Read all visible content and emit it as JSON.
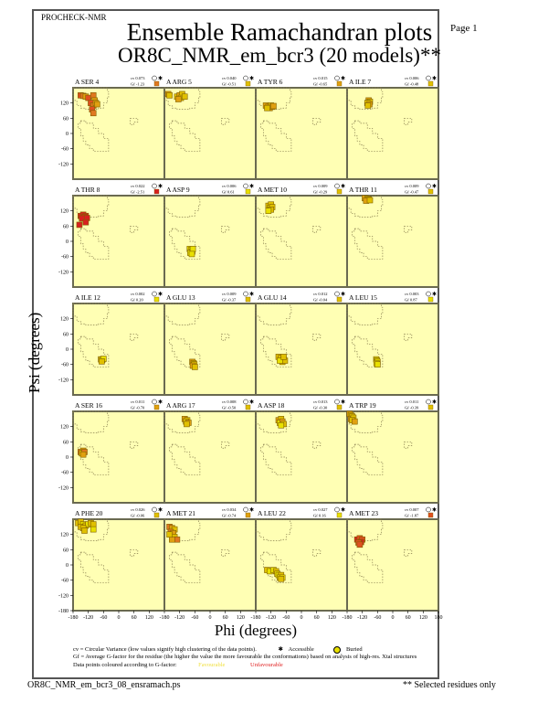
{
  "header": {
    "program": "PROCHECK-NMR",
    "title": "Ensemble Ramachandran plots",
    "subtitle": "OR8C_NMR_em_bcr3 (20 models)**",
    "page_label": "Page  1"
  },
  "footer": {
    "filename": "OR8C_NMR_em_bcr3_08_ensramach.ps",
    "note": "** Selected residues only"
  },
  "legend": {
    "cv_text": "cv = Circular Variance (low values signify high clustering of the data points).",
    "accessible_label": "Accessible",
    "buried_label": "Buried",
    "gf_text": "Gf = Average G-factor for the residue (the higher the value the more favourable the conformations) based on analysis of high-res. Xtal structures",
    "coloured_text": "Data points coloured according to G-factor:",
    "favourable_label": "Favourable",
    "unfavourable_label": "Unfavourable"
  },
  "colors": {
    "panel_bg": "#ffffb4",
    "favourable": "#e8e000",
    "unfavourable": "#e02020",
    "frame": "#555555"
  },
  "chart_data": {
    "type": "scatter",
    "title": "Ensemble Ramachandran plots",
    "xlabel": "Phi (degrees)",
    "ylabel": "Psi (degrees)",
    "xlim": [
      -180,
      180
    ],
    "ylim": [
      -180,
      180
    ],
    "x_ticks": [
      "-180",
      "-120",
      "-60",
      "0",
      "60",
      "120",
      "180"
    ],
    "y_ticks": [
      "120",
      "60",
      "0",
      "-60",
      "-120",
      "-180"
    ],
    "grid": false,
    "panels": [
      {
        "residue": "A SER 4",
        "cv": "cv 0.073",
        "gf": "Gf -1.23",
        "gf_value": -1.23,
        "points": [
          [
            -150,
            150
          ],
          [
            -140,
            148
          ],
          [
            -130,
            145
          ],
          [
            -120,
            140
          ],
          [
            -100,
            150
          ],
          [
            -95,
            130
          ],
          [
            -110,
            120
          ],
          [
            -100,
            110
          ],
          [
            -90,
            120
          ],
          [
            -105,
            95
          ],
          [
            -100,
            80
          ],
          [
            -85,
            115
          ]
        ]
      },
      {
        "residue": "A ARG 5",
        "cv": "cv 0.040",
        "gf": "Gf -0.51",
        "gf_value": -0.51,
        "points": [
          [
            -165,
            155
          ],
          [
            -160,
            150
          ],
          [
            -130,
            145
          ],
          [
            -120,
            150
          ],
          [
            -110,
            155
          ],
          [
            -115,
            140
          ],
          [
            -125,
            135
          ],
          [
            -100,
            145
          ]
        ]
      },
      {
        "residue": "A TYR 6",
        "cv": "cv 0.015",
        "gf": "Gf -0.65",
        "gf_value": -0.65,
        "points": [
          [
            -140,
            110
          ],
          [
            -130,
            105
          ],
          [
            -120,
            110
          ],
          [
            -125,
            100
          ],
          [
            -115,
            105
          ],
          [
            -135,
            100
          ],
          [
            -110,
            108
          ]
        ]
      },
      {
        "residue": "A ILE 7",
        "cv": "cv 0.006",
        "gf": "Gf -0.48",
        "gf_value": -0.48,
        "points": [
          [
            -95,
            130
          ],
          [
            -90,
            125
          ],
          [
            -100,
            120
          ],
          [
            -92,
            115
          ],
          [
            -98,
            110
          ]
        ]
      },
      {
        "residue": "A THR 8",
        "cv": "cv 0.022",
        "gf": "Gf -2.51",
        "gf_value": -2.51,
        "points": [
          [
            -150,
            100
          ],
          [
            -140,
            105
          ],
          [
            -130,
            100
          ],
          [
            -135,
            95
          ],
          [
            -145,
            90
          ],
          [
            -125,
            92
          ],
          [
            -130,
            75
          ],
          [
            -155,
            65
          ]
        ]
      },
      {
        "residue": "A ASP 9",
        "cv": "cv 0.006",
        "gf": "Gf 0.61",
        "gf_value": 0.61,
        "points": [
          [
            -80,
            -30
          ],
          [
            -75,
            -35
          ],
          [
            -70,
            -40
          ],
          [
            -78,
            -45
          ],
          [
            -68,
            -30
          ],
          [
            -72,
            -50
          ]
        ]
      },
      {
        "residue": "A MET 10",
        "cv": "cv 0.009",
        "gf": "Gf -0.29",
        "gf_value": -0.29,
        "points": [
          [
            -130,
            140
          ],
          [
            -120,
            145
          ],
          [
            -125,
            130
          ],
          [
            -115,
            135
          ],
          [
            -120,
            125
          ],
          [
            -130,
            120
          ]
        ]
      },
      {
        "residue": "A THR 11",
        "cv": "cv 0.009",
        "gf": "Gf -0.47",
        "gf_value": -0.47,
        "points": [
          [
            -110,
            170
          ],
          [
            -100,
            168
          ],
          [
            -95,
            165
          ],
          [
            -105,
            160
          ],
          [
            -90,
            162
          ]
        ]
      },
      {
        "residue": "A ILE 12",
        "cv": "cv 0.002",
        "gf": "Gf 0.20",
        "gf_value": 0.2,
        "points": [
          [
            -70,
            -40
          ],
          [
            -65,
            -42
          ],
          [
            -60,
            -38
          ],
          [
            -67,
            -48
          ]
        ]
      },
      {
        "residue": "A GLU 13",
        "cv": "cv 0.009",
        "gf": "Gf -0.37",
        "gf_value": -0.37,
        "points": [
          [
            -70,
            -50
          ],
          [
            -65,
            -55
          ],
          [
            -62,
            -60
          ],
          [
            -68,
            -65
          ],
          [
            -60,
            -70
          ]
        ]
      },
      {
        "residue": "A GLU 14",
        "cv": "cv 0.012",
        "gf": "Gf -0.04",
        "gf_value": -0.04,
        "points": [
          [
            -90,
            -30
          ],
          [
            -80,
            -35
          ],
          [
            -70,
            -40
          ],
          [
            -75,
            -50
          ],
          [
            -65,
            -45
          ],
          [
            -85,
            -45
          ],
          [
            -70,
            -30
          ]
        ]
      },
      {
        "residue": "A LEU 15",
        "cv": "cv 0.003",
        "gf": "Gf 0.87",
        "gf_value": 0.87,
        "points": [
          [
            -65,
            -40
          ],
          [
            -62,
            -45
          ],
          [
            -60,
            -50
          ],
          [
            -64,
            -55
          ],
          [
            -60,
            -60
          ]
        ]
      },
      {
        "residue": "A SER 16",
        "cv": "cv 0.011",
        "gf": "Gf -0.70",
        "gf_value": -0.7,
        "points": [
          [
            -150,
            20
          ],
          [
            -140,
            25
          ],
          [
            -145,
            15
          ],
          [
            -135,
            20
          ],
          [
            -140,
            10
          ]
        ]
      },
      {
        "residue": "A ARG 17",
        "cv": "cv 0.008",
        "gf": "Gf -0.50",
        "gf_value": -0.5,
        "points": [
          [
            -100,
            150
          ],
          [
            -90,
            145
          ],
          [
            -95,
            140
          ],
          [
            -85,
            135
          ],
          [
            -92,
            130
          ]
        ]
      },
      {
        "residue": "A ASP 18",
        "cv": "cv 0.013",
        "gf": "Gf -0.30",
        "gf_value": -0.3,
        "points": [
          [
            -90,
            145
          ],
          [
            -80,
            150
          ],
          [
            -85,
            135
          ],
          [
            -75,
            140
          ],
          [
            -70,
            130
          ],
          [
            -80,
            125
          ]
        ]
      },
      {
        "residue": "A TRP 19",
        "cv": "cv 0.011",
        "gf": "Gf -0.39",
        "gf_value": -0.39,
        "points": [
          [
            -170,
            170
          ],
          [
            -165,
            165
          ],
          [
            -160,
            160
          ],
          [
            -165,
            150
          ],
          [
            -155,
            155
          ],
          [
            -160,
            145
          ],
          [
            -150,
            140
          ]
        ]
      },
      {
        "residue": "A PHE 20",
        "cv": "cv 0.026",
        "gf": "Gf -0.06",
        "gf_value": -0.06,
        "points": [
          [
            -160,
            165
          ],
          [
            -150,
            170
          ],
          [
            -140,
            160
          ],
          [
            -150,
            150
          ],
          [
            -130,
            155
          ],
          [
            -120,
            160
          ],
          [
            -110,
            165
          ],
          [
            -100,
            160
          ],
          [
            -100,
            140
          ],
          [
            -140,
            145
          ],
          [
            -135,
            135
          ]
        ]
      },
      {
        "residue": "A MET 21",
        "cv": "cv 0.034",
        "gf": "Gf -0.74",
        "gf_value": -0.74,
        "points": [
          [
            -160,
            150
          ],
          [
            -150,
            145
          ],
          [
            -140,
            140
          ],
          [
            -155,
            130
          ],
          [
            -145,
            125
          ],
          [
            -140,
            110
          ],
          [
            -130,
            100
          ],
          [
            -150,
            100
          ],
          [
            -160,
            120
          ]
        ]
      },
      {
        "residue": "A LEU 22",
        "cv": "cv 0.027",
        "gf": "Gf 0.16",
        "gf_value": 0.16,
        "points": [
          [
            -135,
            -20
          ],
          [
            -125,
            -25
          ],
          [
            -110,
            -20
          ],
          [
            -100,
            -25
          ],
          [
            -95,
            -35
          ],
          [
            -90,
            -40
          ],
          [
            -80,
            -40
          ],
          [
            -85,
            -50
          ],
          [
            -75,
            -50
          ],
          [
            -80,
            -55
          ]
        ]
      },
      {
        "residue": "A MET 23",
        "cv": "cv 0.007",
        "gf": "Gf -1.87",
        "gf_value": -1.87,
        "points": [
          [
            -140,
            100
          ],
          [
            -130,
            105
          ],
          [
            -120,
            100
          ],
          [
            -125,
            90
          ],
          [
            -135,
            88
          ],
          [
            -130,
            80
          ]
        ]
      }
    ]
  }
}
